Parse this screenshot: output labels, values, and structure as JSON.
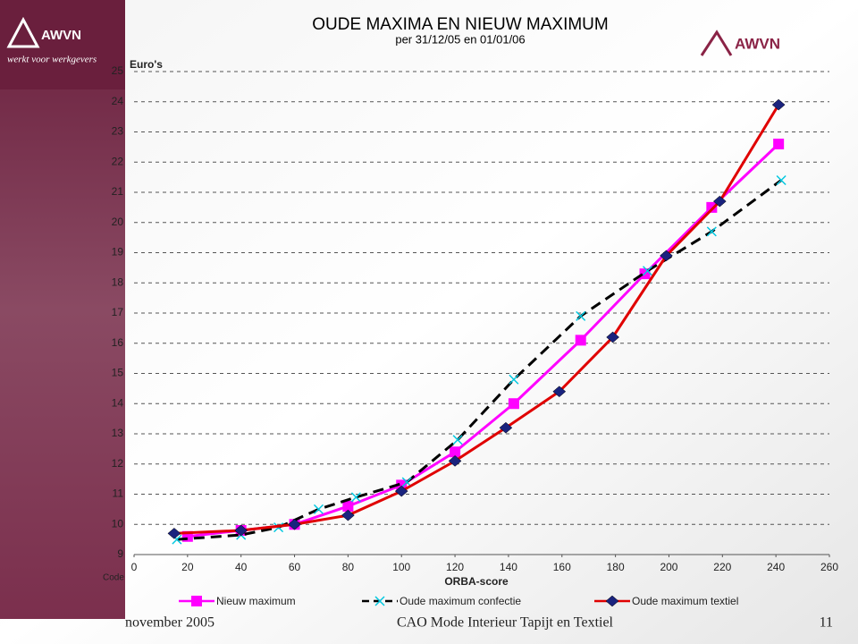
{
  "brand": {
    "logo": "AWVN",
    "tagline": "werkt voor werkgevers",
    "logo_right": "AWVN"
  },
  "footer": {
    "left": "november 2005",
    "center": "CAO Mode Interieur Tapijt en Textiel",
    "page": "11"
  },
  "chart_data": {
    "type": "line",
    "title": "OUDE MAXIMA EN NIEUW MAXIMUM",
    "subtitle": "per 31/12/05 en 01/01/06",
    "y_label": "Euro's",
    "x_label": "ORBA-score",
    "x_corner_label": "Code",
    "xlim": [
      0,
      260
    ],
    "xticks": [
      0,
      20,
      40,
      60,
      80,
      100,
      120,
      140,
      160,
      180,
      200,
      220,
      240,
      260
    ],
    "ylim": [
      9,
      25
    ],
    "yticks": [
      9,
      10,
      11,
      12,
      13,
      14,
      15,
      16,
      17,
      18,
      19,
      20,
      21,
      22,
      23,
      24,
      25
    ],
    "grid": true,
    "series": [
      {
        "name": "Nieuw maximum",
        "color": "#ff00ff",
        "marker_color": "#ff00ff",
        "marker": "square",
        "dash": false,
        "x": [
          20,
          40,
          60,
          80,
          100,
          120,
          142,
          167,
          191,
          216,
          241
        ],
        "values": [
          9.6,
          9.8,
          10.0,
          10.6,
          11.3,
          12.4,
          14.0,
          16.1,
          18.3,
          20.5,
          22.6
        ]
      },
      {
        "name": "Oude maximum confectie",
        "color": "#000000",
        "marker_color": "#00c8e0",
        "marker": "cross",
        "dash": true,
        "x": [
          16,
          40,
          54,
          69,
          83,
          102,
          121,
          142,
          167,
          192,
          216,
          242
        ],
        "values": [
          9.5,
          9.65,
          9.9,
          10.5,
          10.9,
          11.4,
          12.8,
          14.8,
          16.9,
          18.4,
          19.7,
          21.4
        ]
      },
      {
        "name": "Oude maximum textiel",
        "color": "#e00000",
        "marker_color": "#1a237e",
        "marker": "diamond",
        "dash": false,
        "x": [
          15,
          40,
          60,
          80,
          100,
          120,
          139,
          159,
          179,
          199,
          219,
          241
        ],
        "values": [
          9.7,
          9.8,
          10.0,
          10.3,
          11.1,
          12.1,
          13.2,
          14.4,
          16.2,
          18.9,
          20.7,
          23.9
        ]
      }
    ]
  }
}
